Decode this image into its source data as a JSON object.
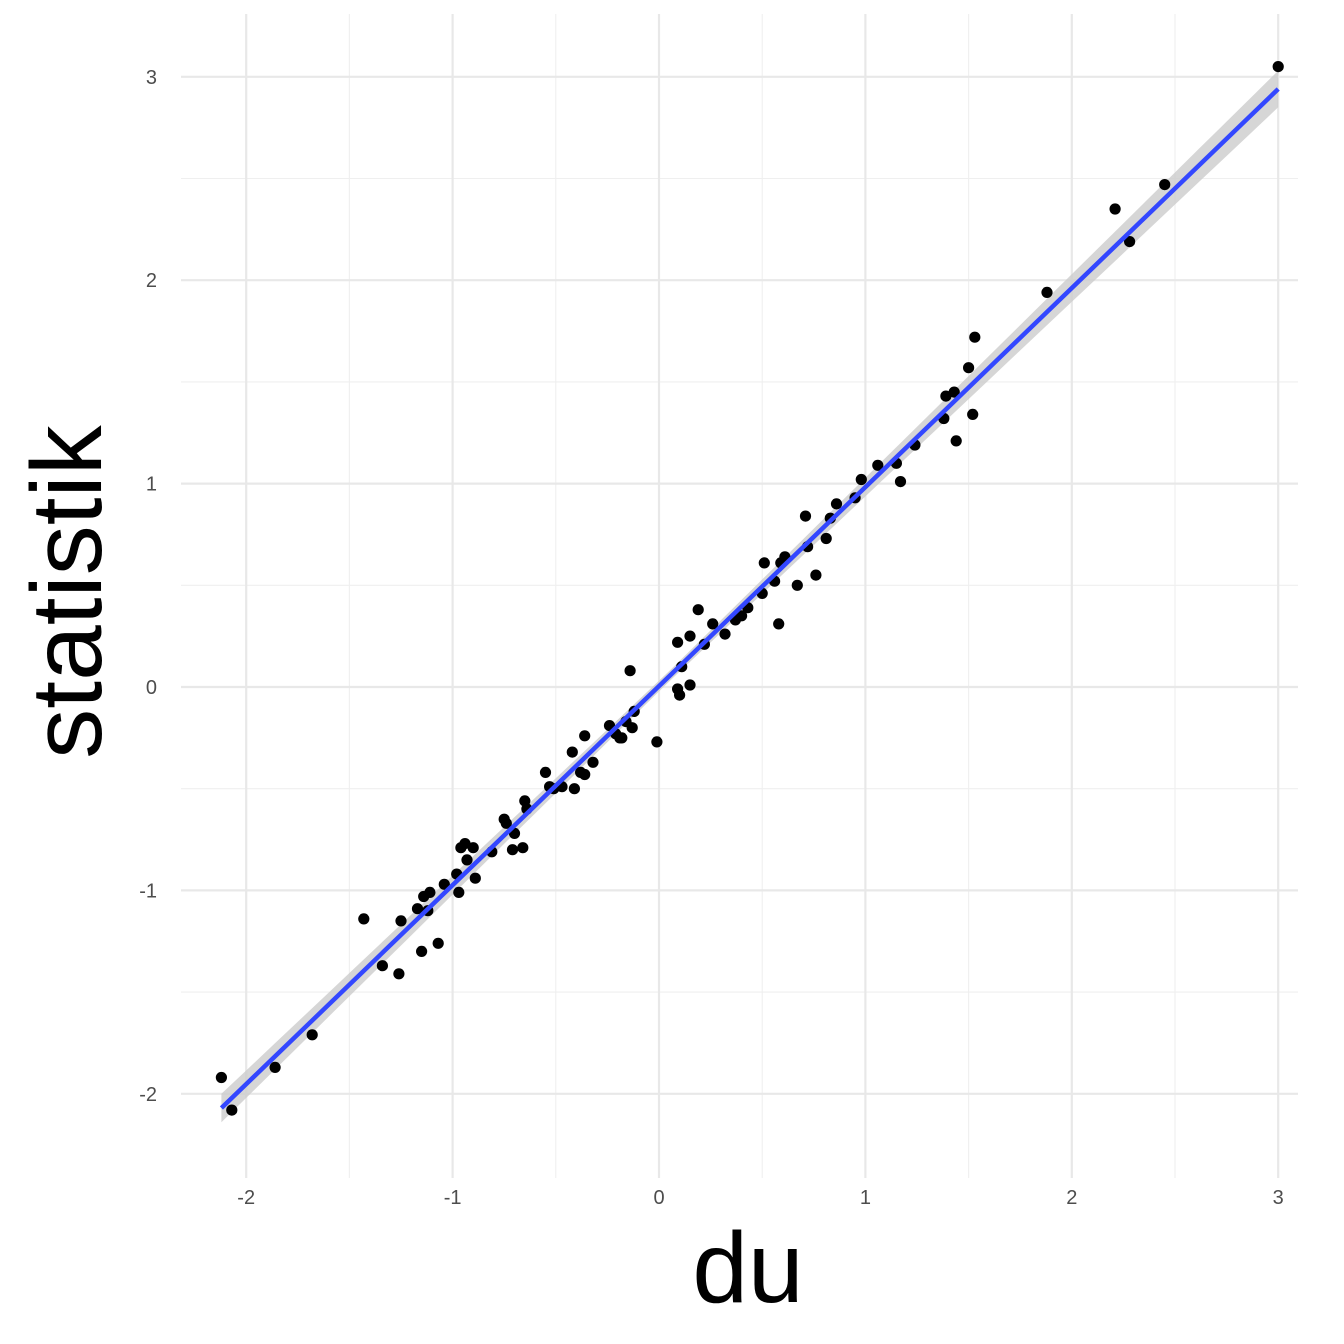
{
  "chart_data": {
    "type": "scatter",
    "xlabel": "du",
    "ylabel": "statistik",
    "xlim": [
      -2.4,
      3.2
    ],
    "ylim": [
      -2.35,
      3.3
    ],
    "x_ticks": [
      -2,
      -1,
      0,
      1,
      2,
      3
    ],
    "y_ticks": [
      -2,
      -1,
      0,
      1,
      2,
      3
    ],
    "x_tick_labels": [
      "-2",
      "-1",
      "0",
      "1",
      "2",
      "3"
    ],
    "y_tick_labels": [
      "-2",
      "-1",
      "0",
      "1",
      "2",
      "3"
    ],
    "grid": true,
    "legend": "none",
    "points": [
      [
        -2.12,
        -1.92
      ],
      [
        -2.07,
        -2.08
      ],
      [
        -1.86,
        -1.87
      ],
      [
        -1.68,
        -1.71
      ],
      [
        -1.43,
        -1.14
      ],
      [
        -1.34,
        -1.37
      ],
      [
        -1.26,
        -1.41
      ],
      [
        -1.25,
        -1.15
      ],
      [
        -1.17,
        -1.09
      ],
      [
        -1.15,
        -1.3
      ],
      [
        -1.14,
        -1.03
      ],
      [
        -1.12,
        -1.1
      ],
      [
        -1.11,
        -1.01
      ],
      [
        -1.07,
        -1.26
      ],
      [
        -1.04,
        -0.97
      ],
      [
        -0.98,
        -0.92
      ],
      [
        -0.97,
        -1.01
      ],
      [
        -0.96,
        -0.79
      ],
      [
        -0.94,
        -0.77
      ],
      [
        -0.93,
        -0.85
      ],
      [
        -0.9,
        -0.79
      ],
      [
        -0.89,
        -0.94
      ],
      [
        -0.81,
        -0.81
      ],
      [
        -0.75,
        -0.65
      ],
      [
        -0.74,
        -0.67
      ],
      [
        -0.71,
        -0.8
      ],
      [
        -0.7,
        -0.72
      ],
      [
        -0.66,
        -0.79
      ],
      [
        -0.65,
        -0.56
      ],
      [
        -0.64,
        -0.6
      ],
      [
        -0.55,
        -0.42
      ],
      [
        -0.53,
        -0.49
      ],
      [
        -0.51,
        -0.5
      ],
      [
        -0.47,
        -0.49
      ],
      [
        -0.42,
        -0.32
      ],
      [
        -0.41,
        -0.5
      ],
      [
        -0.38,
        -0.42
      ],
      [
        -0.36,
        -0.24
      ],
      [
        -0.36,
        -0.43
      ],
      [
        -0.32,
        -0.37
      ],
      [
        -0.24,
        -0.19
      ],
      [
        -0.21,
        -0.23
      ],
      [
        -0.19,
        -0.25
      ],
      [
        -0.18,
        -0.25
      ],
      [
        -0.16,
        -0.17
      ],
      [
        -0.14,
        0.08
      ],
      [
        -0.13,
        -0.2
      ],
      [
        -0.12,
        -0.12
      ],
      [
        -0.01,
        -0.27
      ],
      [
        0.09,
        0.22
      ],
      [
        0.09,
        -0.01
      ],
      [
        0.1,
        -0.04
      ],
      [
        0.11,
        0.1
      ],
      [
        0.15,
        0.25
      ],
      [
        0.15,
        0.01
      ],
      [
        0.19,
        0.38
      ],
      [
        0.22,
        0.21
      ],
      [
        0.26,
        0.31
      ],
      [
        0.32,
        0.26
      ],
      [
        0.37,
        0.33
      ],
      [
        0.4,
        0.35
      ],
      [
        0.43,
        0.39
      ],
      [
        0.5,
        0.46
      ],
      [
        0.51,
        0.61
      ],
      [
        0.56,
        0.52
      ],
      [
        0.58,
        0.31
      ],
      [
        0.59,
        0.61
      ],
      [
        0.61,
        0.64
      ],
      [
        0.67,
        0.5
      ],
      [
        0.71,
        0.84
      ],
      [
        0.72,
        0.69
      ],
      [
        0.76,
        0.55
      ],
      [
        0.81,
        0.73
      ],
      [
        0.83,
        0.83
      ],
      [
        0.86,
        0.9
      ],
      [
        0.95,
        0.93
      ],
      [
        0.98,
        1.02
      ],
      [
        1.06,
        1.09
      ],
      [
        1.15,
        1.1
      ],
      [
        1.17,
        1.01
      ],
      [
        1.24,
        1.19
      ],
      [
        1.38,
        1.32
      ],
      [
        1.39,
        1.43
      ],
      [
        1.43,
        1.45
      ],
      [
        1.44,
        1.21
      ],
      [
        1.5,
        1.57
      ],
      [
        1.52,
        1.34
      ],
      [
        1.53,
        1.72
      ],
      [
        1.88,
        1.94
      ],
      [
        2.21,
        2.35
      ],
      [
        2.28,
        2.19
      ],
      [
        2.45,
        2.47
      ],
      [
        3.0,
        3.05
      ]
    ],
    "fit_line": {
      "x": [
        -2.12,
        3.0
      ],
      "y": [
        -2.07,
        2.94
      ],
      "color": "#3347ff"
    },
    "confidence_band": {
      "x": [
        -2.12,
        0.05,
        3.0
      ],
      "half_width": [
        0.07,
        0.025,
        0.09
      ],
      "color": "#cccccc"
    },
    "point_color": "#000000"
  }
}
